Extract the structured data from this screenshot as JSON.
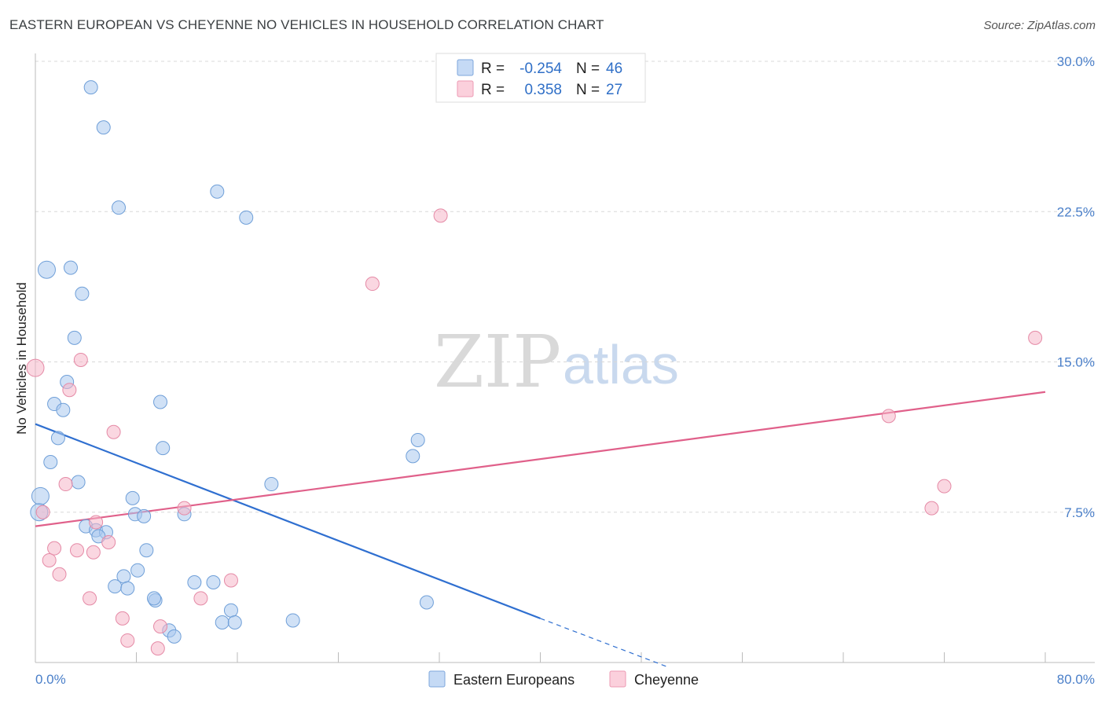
{
  "header": {
    "title": "EASTERN EUROPEAN VS CHEYENNE NO VEHICLES IN HOUSEHOLD CORRELATION CHART",
    "source": "Source: ZipAtlas.com"
  },
  "watermark": {
    "zip": "ZIP",
    "atlas": "atlas"
  },
  "stats_legend": {
    "rows": [
      {
        "r_label": "R =",
        "r_value": "-0.254",
        "n_label": "N =",
        "n_value": "46",
        "color": "#a9c8ef"
      },
      {
        "r_label": "R =",
        "r_value": "0.358",
        "n_label": "N =",
        "n_value": "27",
        "color": "#f6b6c8"
      }
    ]
  },
  "chart_data": {
    "type": "scatter",
    "title": "EASTERN EUROPEAN VS CHEYENNE NO VEHICLES IN HOUSEHOLD CORRELATION CHART",
    "xlabel": "",
    "ylabel": "No Vehicles in Household",
    "xlim": [
      0,
      80
    ],
    "ylim": [
      0,
      30
    ],
    "x_tick_labels": [
      "0.0%",
      "80.0%"
    ],
    "y_ticks": [
      7.5,
      15.0,
      22.5,
      30.0
    ],
    "y_tick_labels": [
      "7.5%",
      "15.0%",
      "22.5%",
      "30.0%"
    ],
    "legend": [
      "Eastern Europeans",
      "Cheyenne"
    ],
    "series": [
      {
        "name": "Eastern Europeans",
        "color": "#a9c8ef",
        "stroke": "#6f9fd8",
        "trend": {
          "x0": 0,
          "y0": 11.9,
          "x1": 40,
          "y1": 2.2,
          "dash_to_x": 50,
          "dash_to_y": -0.2,
          "color": "#2f6fd0"
        },
        "points": [
          [
            4.4,
            28.7
          ],
          [
            5.4,
            26.7
          ],
          [
            6.6,
            22.7
          ],
          [
            14.4,
            23.5
          ],
          [
            16.7,
            22.2
          ],
          [
            0.9,
            19.6
          ],
          [
            2.8,
            19.7
          ],
          [
            3.7,
            18.4
          ],
          [
            3.1,
            16.2
          ],
          [
            2.5,
            14.0
          ],
          [
            1.5,
            12.9
          ],
          [
            2.2,
            12.6
          ],
          [
            9.9,
            13.0
          ],
          [
            1.8,
            11.2
          ],
          [
            1.2,
            10.0
          ],
          [
            10.1,
            10.7
          ],
          [
            3.4,
            9.0
          ],
          [
            18.7,
            8.9
          ],
          [
            30.3,
            11.1
          ],
          [
            29.9,
            10.3
          ],
          [
            0.4,
            8.3
          ],
          [
            0.3,
            7.5
          ],
          [
            7.7,
            8.2
          ],
          [
            7.9,
            7.4
          ],
          [
            8.6,
            7.3
          ],
          [
            11.8,
            7.4
          ],
          [
            4.0,
            6.8
          ],
          [
            4.8,
            6.6
          ],
          [
            5.6,
            6.5
          ],
          [
            5.0,
            6.3
          ],
          [
            8.8,
            5.6
          ],
          [
            8.1,
            4.6
          ],
          [
            7.0,
            4.3
          ],
          [
            6.3,
            3.8
          ],
          [
            7.3,
            3.7
          ],
          [
            9.5,
            3.1
          ],
          [
            9.4,
            3.2
          ],
          [
            12.6,
            4.0
          ],
          [
            14.1,
            4.0
          ],
          [
            31.0,
            3.0
          ],
          [
            15.5,
            2.6
          ],
          [
            14.8,
            2.0
          ],
          [
            15.8,
            2.0
          ],
          [
            20.4,
            2.1
          ],
          [
            10.6,
            1.6
          ],
          [
            11.0,
            1.3
          ]
        ]
      },
      {
        "name": "Cheyenne",
        "color": "#f6b6c8",
        "stroke": "#e58aa6",
        "trend": {
          "x0": 0,
          "y0": 6.8,
          "x1": 80,
          "y1": 13.5,
          "color": "#e0608a"
        },
        "points": [
          [
            32.1,
            22.3
          ],
          [
            26.7,
            18.9
          ],
          [
            0.0,
            14.7
          ],
          [
            3.6,
            15.1
          ],
          [
            2.7,
            13.6
          ],
          [
            6.2,
            11.5
          ],
          [
            79.2,
            16.2
          ],
          [
            67.6,
            12.3
          ],
          [
            72.0,
            8.8
          ],
          [
            71.0,
            7.7
          ],
          [
            2.4,
            8.9
          ],
          [
            0.6,
            7.5
          ],
          [
            11.8,
            7.7
          ],
          [
            4.8,
            7.0
          ],
          [
            5.8,
            6.0
          ],
          [
            1.5,
            5.7
          ],
          [
            3.3,
            5.6
          ],
          [
            4.6,
            5.5
          ],
          [
            1.1,
            5.1
          ],
          [
            1.9,
            4.4
          ],
          [
            15.5,
            4.1
          ],
          [
            4.3,
            3.2
          ],
          [
            13.1,
            3.2
          ],
          [
            6.9,
            2.2
          ],
          [
            9.9,
            1.8
          ],
          [
            7.3,
            1.1
          ],
          [
            9.7,
            0.7
          ]
        ]
      }
    ]
  }
}
